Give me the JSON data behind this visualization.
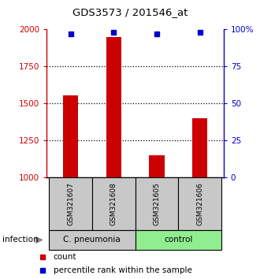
{
  "title": "GDS3573 / 201546_at",
  "samples": [
    "GSM321607",
    "GSM321608",
    "GSM321605",
    "GSM321606"
  ],
  "bar_values": [
    1553,
    1950,
    1150,
    1400
  ],
  "percentile_values": [
    97,
    98,
    97,
    98
  ],
  "bar_color": "#cc0000",
  "percentile_color": "#0000cc",
  "ylim_left": [
    1000,
    2000
  ],
  "ylim_right": [
    0,
    100
  ],
  "yticks_left": [
    1000,
    1250,
    1500,
    1750,
    2000
  ],
  "yticks_right": [
    0,
    25,
    50,
    75,
    100
  ],
  "ytick_labels_left": [
    "1000",
    "1250",
    "1500",
    "1750",
    "2000"
  ],
  "ytick_labels_right": [
    "0",
    "25",
    "50",
    "75",
    "100%"
  ],
  "group_label_cp": "C. pneumonia",
  "group_label_ctrl": "control",
  "group_color_cp": "#c8c8c8",
  "group_color_ctrl": "#90ee90",
  "sample_box_color": "#c8c8c8",
  "infection_label": "infection",
  "legend_count_label": "count",
  "legend_pct_label": "percentile rank within the sample",
  "bar_width": 0.35,
  "background_color": "#ffffff",
  "plot_bg_color": "#ffffff",
  "dotted_grid_color": "#000000",
  "dotted_grid_values": [
    1250,
    1500,
    1750
  ]
}
